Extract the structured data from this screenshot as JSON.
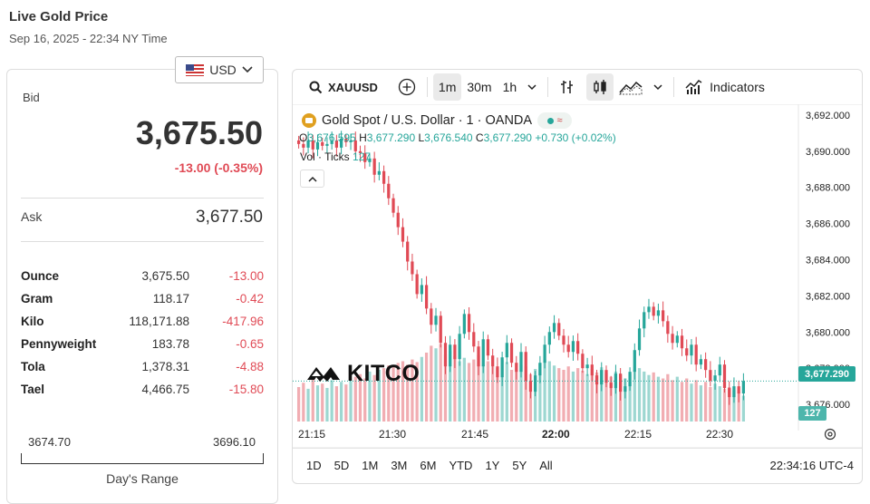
{
  "page": {
    "title": "Live Gold Price",
    "subtitle": "Sep 16, 2025 - 22:34 NY Time"
  },
  "currency": {
    "selected": "USD",
    "flag_icon": "us-flag-icon"
  },
  "quote": {
    "bid_label": "Bid",
    "bid_value": "3,675.50",
    "bid_change": "-13.00 (-0.35%)",
    "ask_label": "Ask",
    "ask_value": "3,677.50",
    "change_color": "#e04a55"
  },
  "units": [
    {
      "name": "Ounce",
      "value": "3,675.50",
      "change": "-13.00"
    },
    {
      "name": "Gram",
      "value": "118.17",
      "change": "-0.42"
    },
    {
      "name": "Kilo",
      "value": "118,171.88",
      "change": "-417.96"
    },
    {
      "name": "Pennyweight",
      "value": "183.78",
      "change": "-0.65"
    },
    {
      "name": "Tola",
      "value": "1,378.31",
      "change": "-4.88"
    },
    {
      "name": "Tael",
      "value": "4,466.75",
      "change": "-15.80"
    }
  ],
  "day_range": {
    "low": "3674.70",
    "high": "3696.10",
    "caption": "Day's Range"
  },
  "toolbar": {
    "symbol": "XAUUSD",
    "intervals": [
      "1m",
      "30m",
      "1h"
    ],
    "active_interval": "1m",
    "indicators_label": "Indicators"
  },
  "chart_header": {
    "title": "Gold Spot / U.S. Dollar · 1 · OANDA",
    "o_label": "O",
    "o_value": "3,676.595",
    "h_label": "H",
    "h_value": "3,677.290",
    "l_label": "L",
    "l_value": "3,676.540",
    "c_label": "C",
    "c_value": "3,677.290",
    "change": "+0.730 (+0.02%)",
    "vol_label": "Vol · Ticks",
    "vol_value": "127"
  },
  "watermark": "KITCO",
  "price_tags": {
    "last": "3,677.290",
    "volume": "127",
    "up_color": "#26a69a",
    "down_color": "#e04a55"
  },
  "time_labels": [
    "21:15",
    "21:30",
    "21:45",
    "22:00",
    "22:15",
    "22:30"
  ],
  "range_buttons": [
    "1D",
    "5D",
    "1M",
    "3M",
    "6M",
    "YTD",
    "1Y",
    "5Y",
    "All"
  ],
  "clock": "22:34:16 UTC-4",
  "chart_data": {
    "type": "candlestick",
    "title": "Gold Spot / U.S. Dollar · 1 · OANDA",
    "y_ticks": [
      "3,692.000",
      "3,690.000",
      "3,688.000",
      "3,686.000",
      "3,684.000",
      "3,682.000",
      "3,680.000",
      "3,678.000",
      "3,676.000"
    ],
    "ylim": [
      3674.8,
      3692.6
    ],
    "x_ticks": [
      "21:15",
      "21:30",
      "21:45",
      "22:00",
      "22:15",
      "22:30"
    ],
    "last_price": 3677.29,
    "series_close": [
      3690.4,
      3690.2,
      3690.6,
      3690.1,
      3690.5,
      3690.3,
      3690.4,
      3690.6,
      3690.2,
      3690.7,
      3690.5,
      3690.6,
      3690.0,
      3689.9,
      3689.4,
      3689.6,
      3688.7,
      3688.9,
      3688.2,
      3687.4,
      3686.6,
      3685.8,
      3685.0,
      3683.9,
      3683.2,
      3682.1,
      3682.6,
      3681.3,
      3680.4,
      3680.9,
      3679.4,
      3678.1,
      3679.3,
      3678.5,
      3679.9,
      3681.0,
      3680.0,
      3679.2,
      3678.1,
      3679.6,
      3678.7,
      3678.1,
      3677.5,
      3678.6,
      3679.4,
      3678.3,
      3677.8,
      3678.9,
      3677.3,
      3676.7,
      3677.6,
      3678.3,
      3679.3,
      3680.0,
      3680.5,
      3679.8,
      3679.3,
      3678.9,
      3679.5,
      3678.8,
      3678.0,
      3678.2,
      3677.6,
      3677.1,
      3677.9,
      3677.2,
      3676.9,
      3677.7,
      3676.7,
      3677.0,
      3677.8,
      3679.0,
      3680.2,
      3681.1,
      3681.4,
      3680.9,
      3681.2,
      3680.6,
      3679.9,
      3679.4,
      3679.8,
      3679.1,
      3678.7,
      3679.3,
      3678.2,
      3678.5,
      3677.9,
      3677.3,
      3677.6,
      3678.2,
      3676.9,
      3676.4,
      3677.0,
      3676.6,
      3677.29
    ],
    "series_volume": [
      40,
      45,
      38,
      50,
      42,
      44,
      39,
      48,
      41,
      46,
      43,
      47,
      52,
      55,
      50,
      58,
      54,
      60,
      62,
      65,
      63,
      68,
      70,
      66,
      72,
      69,
      75,
      80,
      88,
      85,
      90,
      78,
      82,
      76,
      70,
      74,
      68,
      72,
      77,
      66,
      70,
      64,
      62,
      71,
      69,
      60,
      58,
      66,
      64,
      55,
      61,
      67,
      72,
      70,
      65,
      62,
      60,
      64,
      58,
      62,
      59,
      55,
      61,
      57,
      63,
      56,
      52,
      58,
      54,
      50,
      55,
      60,
      62,
      58,
      54,
      57,
      52,
      50,
      55,
      48,
      52,
      46,
      50,
      44,
      48,
      42,
      46,
      40,
      44,
      41,
      38,
      40,
      36,
      34,
      30
    ],
    "volume_scale_max": 100
  }
}
